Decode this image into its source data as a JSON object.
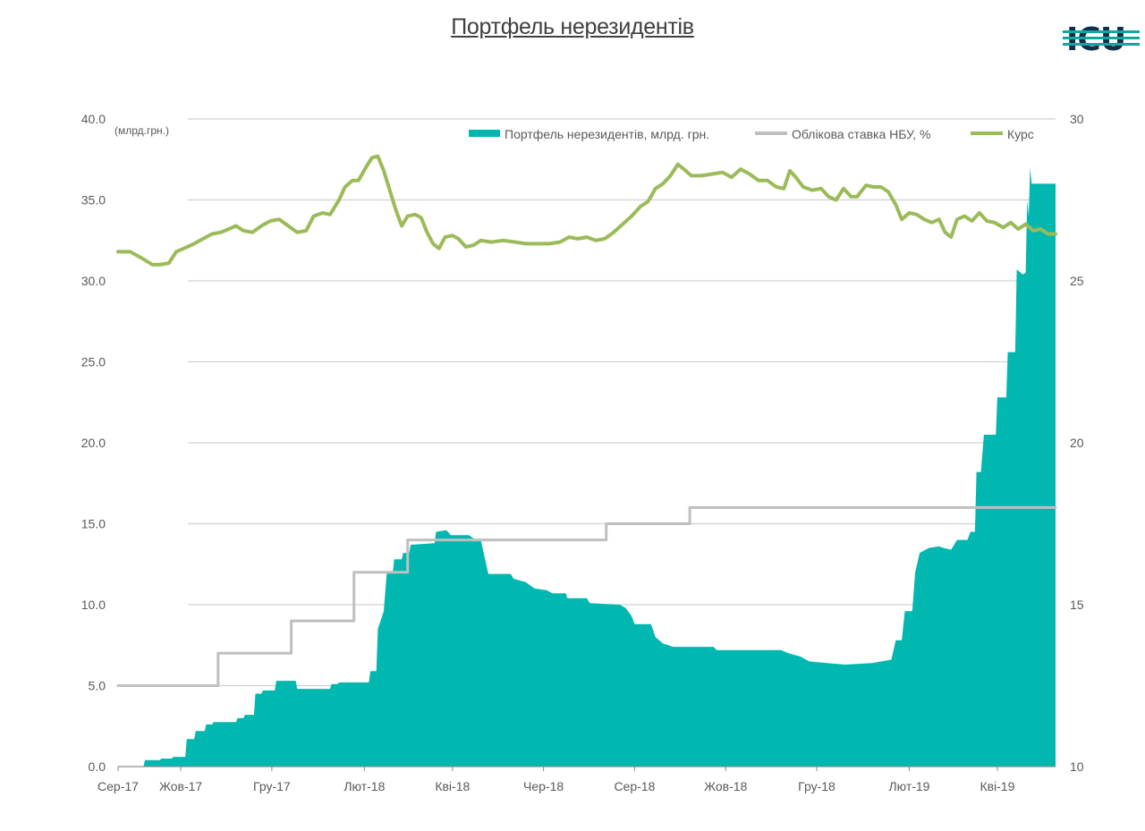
{
  "title": "Портфель нерезидентів",
  "logo": {
    "text": "ICU",
    "color": "#0f2f4a",
    "accent": "#0fa89e"
  },
  "chart_data": {
    "type": "area",
    "unit_label": "(млрд.грн.)",
    "x_tick_labels": [
      "Сер-17",
      "Жов-17",
      "Гру-17",
      "Лют-18",
      "Кві-18",
      "Чер-18",
      "Сер-18",
      "Жов-18",
      "Гру-18",
      "Лют-19",
      "Кві-19"
    ],
    "x_range": [
      "2017-08-20",
      "2019-05-10"
    ],
    "y_left": {
      "min": 0,
      "max": 40,
      "step": 5,
      "tick_labels": [
        "0.0",
        "5.0",
        "10.0",
        "15.0",
        "20.0",
        "25.0",
        "30.0",
        "35.0",
        "40.0"
      ]
    },
    "y_right": {
      "min": 10,
      "max": 30,
      "step": 5,
      "tick_labels": [
        "10",
        "15",
        "20",
        "25",
        "30"
      ]
    },
    "grid": true,
    "legend_position": "top-right",
    "series": [
      {
        "name": "Портфель нерезидентів, млрд. грн.",
        "type": "area",
        "axis": "left",
        "color": "#00b8b0",
        "points": [
          [
            "2017-08-20",
            0.0
          ],
          [
            "2017-09-06",
            0.0
          ],
          [
            "2017-09-07",
            0.4
          ],
          [
            "2017-09-17",
            0.4
          ],
          [
            "2017-09-18",
            0.5
          ],
          [
            "2017-09-25",
            0.5
          ],
          [
            "2017-09-26",
            0.6
          ],
          [
            "2017-10-04",
            0.6
          ],
          [
            "2017-10-05",
            1.7
          ],
          [
            "2017-10-10",
            1.7
          ],
          [
            "2017-10-11",
            2.2
          ],
          [
            "2017-10-17",
            2.2
          ],
          [
            "2017-10-18",
            2.6
          ],
          [
            "2017-10-22",
            2.6
          ],
          [
            "2017-10-23",
            2.75
          ],
          [
            "2017-11-07",
            2.75
          ],
          [
            "2017-11-08",
            3.0
          ],
          [
            "2017-11-12",
            3.0
          ],
          [
            "2017-11-13",
            3.2
          ],
          [
            "2017-11-19",
            3.2
          ],
          [
            "2017-11-20",
            4.5
          ],
          [
            "2017-11-24",
            4.5
          ],
          [
            "2017-11-25",
            4.7
          ],
          [
            "2017-12-03",
            4.7
          ],
          [
            "2017-12-04",
            5.3
          ],
          [
            "2017-12-17",
            5.3
          ],
          [
            "2017-12-18",
            4.8
          ],
          [
            "2018-01-09",
            4.8
          ],
          [
            "2018-01-10",
            5.1
          ],
          [
            "2018-01-14",
            5.1
          ],
          [
            "2018-01-15",
            5.2
          ],
          [
            "2018-02-04",
            5.2
          ],
          [
            "2018-02-05",
            5.9
          ],
          [
            "2018-02-09",
            5.9
          ],
          [
            "2018-02-10",
            8.5
          ],
          [
            "2018-02-14",
            9.6
          ],
          [
            "2018-02-16",
            12.0
          ],
          [
            "2018-02-20",
            12.0
          ],
          [
            "2018-02-21",
            12.8
          ],
          [
            "2018-02-26",
            12.8
          ],
          [
            "2018-02-27",
            13.2
          ],
          [
            "2018-03-03",
            13.2
          ],
          [
            "2018-03-04",
            13.7
          ],
          [
            "2018-03-20",
            13.8
          ],
          [
            "2018-03-21",
            14.5
          ],
          [
            "2018-03-28",
            14.6
          ],
          [
            "2018-03-31",
            14.3
          ],
          [
            "2018-04-12",
            14.3
          ],
          [
            "2018-04-15",
            14.1
          ],
          [
            "2018-04-20",
            14.0
          ],
          [
            "2018-04-25",
            11.9
          ],
          [
            "2018-05-10",
            11.9
          ],
          [
            "2018-05-12",
            11.6
          ],
          [
            "2018-05-20",
            11.4
          ],
          [
            "2018-05-26",
            11.0
          ],
          [
            "2018-06-03",
            10.9
          ],
          [
            "2018-06-07",
            10.7
          ],
          [
            "2018-06-16",
            10.7
          ],
          [
            "2018-06-17",
            10.4
          ],
          [
            "2018-06-30",
            10.4
          ],
          [
            "2018-07-02",
            10.1
          ],
          [
            "2018-07-22",
            10.0
          ],
          [
            "2018-07-26",
            9.8
          ],
          [
            "2018-07-30",
            9.3
          ],
          [
            "2018-08-01",
            8.8
          ],
          [
            "2018-08-12",
            8.8
          ],
          [
            "2018-08-15",
            8.0
          ],
          [
            "2018-08-20",
            7.6
          ],
          [
            "2018-08-27",
            7.4
          ],
          [
            "2018-09-23",
            7.4
          ],
          [
            "2018-09-25",
            7.2
          ],
          [
            "2018-11-07",
            7.2
          ],
          [
            "2018-11-12",
            7.0
          ],
          [
            "2018-11-20",
            6.8
          ],
          [
            "2018-11-26",
            6.5
          ],
          [
            "2018-12-08",
            6.4
          ],
          [
            "2018-12-20",
            6.3
          ],
          [
            "2019-01-07",
            6.4
          ],
          [
            "2019-01-20",
            6.6
          ],
          [
            "2019-01-23",
            7.8
          ],
          [
            "2019-01-27",
            7.8
          ],
          [
            "2019-01-29",
            9.6
          ],
          [
            "2019-02-03",
            9.6
          ],
          [
            "2019-02-05",
            12.0
          ],
          [
            "2019-02-08",
            13.2
          ],
          [
            "2019-02-14",
            13.5
          ],
          [
            "2019-02-21",
            13.6
          ],
          [
            "2019-02-24",
            13.5
          ],
          [
            "2019-03-01",
            13.4
          ],
          [
            "2019-03-05",
            14.0
          ],
          [
            "2019-03-12",
            14.0
          ],
          [
            "2019-03-14",
            14.5
          ],
          [
            "2019-03-17",
            14.5
          ],
          [
            "2019-03-18",
            18.2
          ],
          [
            "2019-03-21",
            18.2
          ],
          [
            "2019-03-23",
            20.5
          ],
          [
            "2019-03-31",
            20.5
          ],
          [
            "2019-04-01",
            22.8
          ],
          [
            "2019-04-07",
            22.8
          ],
          [
            "2019-04-08",
            25.6
          ],
          [
            "2019-04-13",
            25.6
          ],
          [
            "2019-04-14",
            30.7
          ],
          [
            "2019-04-18",
            30.4
          ],
          [
            "2019-04-20",
            30.5
          ],
          [
            "2019-04-21",
            35.0
          ],
          [
            "2019-04-22",
            34.0
          ],
          [
            "2019-04-23",
            37.0
          ],
          [
            "2019-04-24",
            36.0
          ],
          [
            "2019-05-06",
            36.0
          ],
          [
            "2019-05-10",
            36.0
          ]
        ]
      },
      {
        "name": "Облікова ставка НБУ, %",
        "type": "step",
        "axis": "right",
        "color": "#bfbfbf",
        "points": [
          [
            "2017-08-20",
            12.5
          ],
          [
            "2017-10-26",
            12.5
          ],
          [
            "2017-10-26",
            13.5
          ],
          [
            "2017-12-14",
            13.5
          ],
          [
            "2017-12-14",
            14.5
          ],
          [
            "2018-01-25",
            14.5
          ],
          [
            "2018-01-25",
            16.0
          ],
          [
            "2018-03-02",
            16.0
          ],
          [
            "2018-03-02",
            17.0
          ],
          [
            "2018-07-13",
            17.0
          ],
          [
            "2018-07-13",
            17.5
          ],
          [
            "2018-09-07",
            17.5
          ],
          [
            "2018-09-07",
            18.0
          ],
          [
            "2019-05-10",
            18.0
          ]
        ]
      },
      {
        "name": "Курс",
        "type": "line",
        "axis": "right",
        "color": "#9bbb59",
        "points": [
          [
            "2017-08-20",
            25.9
          ],
          [
            "2017-08-28",
            25.9
          ],
          [
            "2017-09-05",
            25.7
          ],
          [
            "2017-09-12",
            25.5
          ],
          [
            "2017-09-17",
            25.5
          ],
          [
            "2017-09-23",
            25.55
          ],
          [
            "2017-09-28",
            25.9
          ],
          [
            "2017-10-03",
            26.0
          ],
          [
            "2017-10-10",
            26.15
          ],
          [
            "2017-10-16",
            26.3
          ],
          [
            "2017-10-22",
            26.45
          ],
          [
            "2017-10-28",
            26.5
          ],
          [
            "2017-11-02",
            26.6
          ],
          [
            "2017-11-07",
            26.7
          ],
          [
            "2017-11-12",
            26.55
          ],
          [
            "2017-11-18",
            26.5
          ],
          [
            "2017-11-24",
            26.7
          ],
          [
            "2017-11-30",
            26.85
          ],
          [
            "2017-12-06",
            26.9
          ],
          [
            "2017-12-12",
            26.7
          ],
          [
            "2017-12-18",
            26.5
          ],
          [
            "2017-12-24",
            26.55
          ],
          [
            "2017-12-29",
            27.0
          ],
          [
            "2018-01-04",
            27.1
          ],
          [
            "2018-01-09",
            27.05
          ],
          [
            "2018-01-15",
            27.5
          ],
          [
            "2018-01-19",
            27.9
          ],
          [
            "2018-01-24",
            28.1
          ],
          [
            "2018-01-28",
            28.1
          ],
          [
            "2018-02-02",
            28.5
          ],
          [
            "2018-02-06",
            28.8
          ],
          [
            "2018-02-10",
            28.85
          ],
          [
            "2018-02-14",
            28.4
          ],
          [
            "2018-02-18",
            27.8
          ],
          [
            "2018-02-22",
            27.2
          ],
          [
            "2018-02-26",
            26.7
          ],
          [
            "2018-03-02",
            27.0
          ],
          [
            "2018-03-07",
            27.05
          ],
          [
            "2018-03-11",
            26.95
          ],
          [
            "2018-03-15",
            26.5
          ],
          [
            "2018-03-19",
            26.15
          ],
          [
            "2018-03-23",
            26.0
          ],
          [
            "2018-03-27",
            26.35
          ],
          [
            "2018-04-01",
            26.4
          ],
          [
            "2018-04-05",
            26.3
          ],
          [
            "2018-04-10",
            26.05
          ],
          [
            "2018-04-15",
            26.1
          ],
          [
            "2018-04-20",
            26.25
          ],
          [
            "2018-04-27",
            26.2
          ],
          [
            "2018-05-05",
            26.25
          ],
          [
            "2018-05-13",
            26.2
          ],
          [
            "2018-05-20",
            26.15
          ],
          [
            "2018-05-28",
            26.15
          ],
          [
            "2018-06-05",
            26.15
          ],
          [
            "2018-06-12",
            26.2
          ],
          [
            "2018-06-18",
            26.35
          ],
          [
            "2018-06-24",
            26.3
          ],
          [
            "2018-06-30",
            26.35
          ],
          [
            "2018-07-06",
            26.25
          ],
          [
            "2018-07-12",
            26.3
          ],
          [
            "2018-07-18",
            26.5
          ],
          [
            "2018-07-24",
            26.75
          ],
          [
            "2018-07-30",
            27.0
          ],
          [
            "2018-08-05",
            27.3
          ],
          [
            "2018-08-10",
            27.45
          ],
          [
            "2018-08-15",
            27.85
          ],
          [
            "2018-08-20",
            28.0
          ],
          [
            "2018-08-25",
            28.25
          ],
          [
            "2018-08-30",
            28.6
          ],
          [
            "2018-09-03",
            28.45
          ],
          [
            "2018-09-08",
            28.25
          ],
          [
            "2018-09-15",
            28.25
          ],
          [
            "2018-09-22",
            28.3
          ],
          [
            "2018-09-29",
            28.35
          ],
          [
            "2018-10-05",
            28.2
          ],
          [
            "2018-10-11",
            28.45
          ],
          [
            "2018-10-17",
            28.3
          ],
          [
            "2018-10-23",
            28.1
          ],
          [
            "2018-10-29",
            28.1
          ],
          [
            "2018-11-04",
            27.9
          ],
          [
            "2018-11-09",
            27.85
          ],
          [
            "2018-11-13",
            28.4
          ],
          [
            "2018-11-17",
            28.2
          ],
          [
            "2018-11-22",
            27.9
          ],
          [
            "2018-11-28",
            27.8
          ],
          [
            "2018-12-04",
            27.85
          ],
          [
            "2018-12-09",
            27.6
          ],
          [
            "2018-12-14",
            27.5
          ],
          [
            "2018-12-19",
            27.85
          ],
          [
            "2018-12-24",
            27.6
          ],
          [
            "2018-12-28",
            27.6
          ],
          [
            "2019-01-03",
            27.95
          ],
          [
            "2019-01-08",
            27.9
          ],
          [
            "2019-01-13",
            27.9
          ],
          [
            "2019-01-18",
            27.75
          ],
          [
            "2019-01-23",
            27.35
          ],
          [
            "2019-01-27",
            26.9
          ],
          [
            "2019-02-01",
            27.1
          ],
          [
            "2019-02-06",
            27.05
          ],
          [
            "2019-02-11",
            26.9
          ],
          [
            "2019-02-16",
            26.8
          ],
          [
            "2019-02-21",
            26.9
          ],
          [
            "2019-02-25",
            26.5
          ],
          [
            "2019-03-01",
            26.35
          ],
          [
            "2019-03-05",
            26.9
          ],
          [
            "2019-03-10",
            27.0
          ],
          [
            "2019-03-15",
            26.85
          ],
          [
            "2019-03-20",
            27.1
          ],
          [
            "2019-03-25",
            26.85
          ],
          [
            "2019-03-30",
            26.8
          ],
          [
            "2019-04-05",
            26.65
          ],
          [
            "2019-04-10",
            26.8
          ],
          [
            "2019-04-15",
            26.6
          ],
          [
            "2019-04-20",
            26.75
          ],
          [
            "2019-04-25",
            26.55
          ],
          [
            "2019-04-30",
            26.6
          ],
          [
            "2019-05-05",
            26.45
          ],
          [
            "2019-05-10",
            26.45
          ]
        ]
      }
    ]
  }
}
